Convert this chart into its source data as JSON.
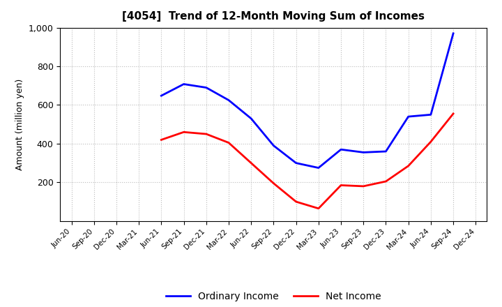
{
  "title": "[4054]  Trend of 12-Month Moving Sum of Incomes",
  "ylabel": "Amount (million yen)",
  "background_color": "#ffffff",
  "grid_color": "#bbbbbb",
  "x_labels": [
    "Jun-20",
    "Sep-20",
    "Dec-20",
    "Mar-21",
    "Jun-21",
    "Sep-21",
    "Dec-21",
    "Mar-22",
    "Jun-22",
    "Sep-22",
    "Dec-22",
    "Mar-23",
    "Jun-23",
    "Sep-23",
    "Dec-23",
    "Mar-24",
    "Jun-24",
    "Sep-24",
    "Dec-24"
  ],
  "ordinary_income": [
    null,
    null,
    null,
    null,
    648,
    708,
    690,
    625,
    530,
    390,
    300,
    275,
    370,
    355,
    360,
    540,
    550,
    970,
    null
  ],
  "net_income": [
    null,
    null,
    null,
    null,
    420,
    460,
    450,
    405,
    300,
    195,
    100,
    65,
    185,
    180,
    205,
    285,
    410,
    555,
    null
  ],
  "line_color_ordinary": "#0000ff",
  "line_color_net": "#ff0000",
  "ylim": [
    0,
    1000
  ],
  "yticks": [
    200,
    400,
    600,
    800,
    1000
  ],
  "ytick_labels": [
    "200",
    "400",
    "600",
    "800",
    "1,000"
  ],
  "legend_ordinary": "Ordinary Income",
  "legend_net": "Net Income",
  "line_width": 2.0
}
